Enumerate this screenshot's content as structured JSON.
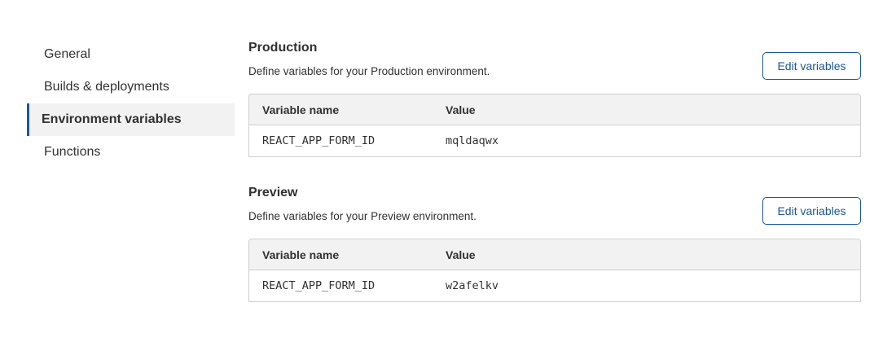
{
  "sidebar": {
    "items": [
      {
        "label": "General"
      },
      {
        "label": "Builds & deployments"
      },
      {
        "label": "Environment variables",
        "active": true
      },
      {
        "label": "Functions"
      }
    ]
  },
  "accent_color": "#1a56a0",
  "sections": [
    {
      "title": "Production",
      "description": "Define variables for your Production environment.",
      "button": "Edit variables",
      "columns": [
        "Variable name",
        "Value"
      ],
      "rows": [
        [
          "REACT_APP_FORM_ID",
          "mqldaqwx"
        ]
      ]
    },
    {
      "title": "Preview",
      "description": "Define variables for your Preview environment.",
      "button": "Edit variables",
      "columns": [
        "Variable name",
        "Value"
      ],
      "rows": [
        [
          "REACT_APP_FORM_ID",
          "w2afelkv"
        ]
      ]
    }
  ]
}
